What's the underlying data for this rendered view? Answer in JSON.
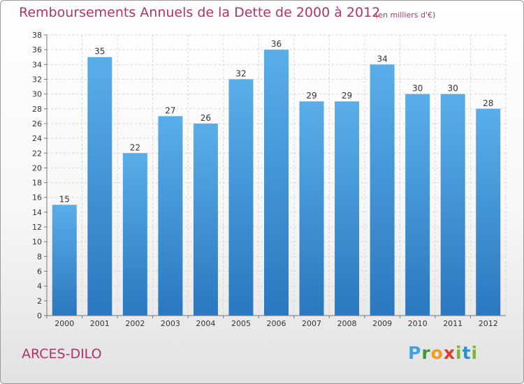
{
  "header": {
    "title": "Remboursements Annuels de la Dette de 2000 à 2012",
    "subtitle": "(en milliers d'€)"
  },
  "footer": {
    "commune": "ARCES-DILO",
    "logo": [
      "P",
      "r",
      "o",
      "x",
      "i",
      "t",
      "i"
    ]
  },
  "colors": {
    "bar_top": "#5aaee8",
    "bar_bottom": "#2a78bf",
    "title": "#b0336b"
  },
  "chart_data": {
    "type": "bar",
    "categories": [
      "2000",
      "2001",
      "2002",
      "2003",
      "2004",
      "2005",
      "2006",
      "2007",
      "2008",
      "2009",
      "2010",
      "2011",
      "2012"
    ],
    "values": [
      15,
      35,
      22,
      27,
      26,
      32,
      36,
      29,
      29,
      34,
      30,
      30,
      28
    ],
    "title": "Remboursements Annuels de la Dette de 2000 à 2012",
    "subtitle": "(en milliers d'€)",
    "ylim": [
      0,
      38
    ],
    "yticks": [
      0,
      2,
      4,
      6,
      8,
      10,
      12,
      14,
      16,
      18,
      20,
      22,
      24,
      26,
      28,
      30,
      32,
      34,
      36,
      38
    ],
    "grid": true,
    "data_labels": true
  }
}
